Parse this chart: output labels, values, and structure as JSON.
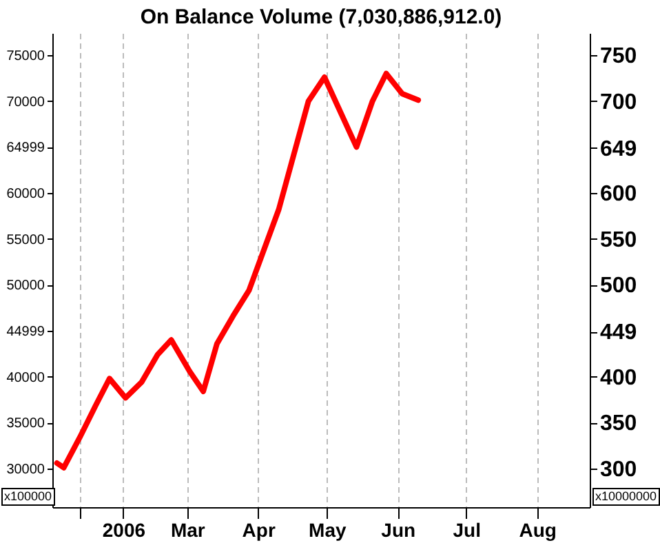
{
  "chart_data": {
    "type": "line",
    "title": "On Balance Volume (7,030,886,912.0)",
    "x": [
      "2006-01-03",
      "2006-01-06",
      "2006-01-13",
      "2006-01-20",
      "2006-01-26",
      "2006-02-02",
      "2006-02-09",
      "2006-02-16",
      "2006-02-22",
      "2006-03-02",
      "2006-03-08",
      "2006-03-14",
      "2006-03-21",
      "2006-03-28",
      "2006-04-10",
      "2006-04-23",
      "2006-04-30",
      "2006-05-14",
      "2006-05-21",
      "2006-05-27",
      "2006-06-03",
      "2006-06-10"
    ],
    "series": [
      {
        "color": "#ff0000",
        "values": [
          30600,
          30100,
          33400,
          36900,
          39800,
          37700,
          39400,
          42400,
          44000,
          40600,
          38400,
          43600,
          46600,
          49400,
          58200,
          70000,
          72600,
          65000,
          70000,
          73000,
          70800,
          70100
        ]
      }
    ],
    "xlim": [
      "2006-01-01",
      "2006-08-24"
    ],
    "xticks": [
      {
        "value": "2006-01-13",
        "label": null
      },
      {
        "value": "2006-02-01",
        "label": "2006"
      },
      {
        "value": "2006-03-01",
        "label": "Mar"
      },
      {
        "value": "2006-04-01",
        "label": "Apr"
      },
      {
        "value": "2006-05-01",
        "label": "May"
      },
      {
        "value": "2006-06-01",
        "label": "Jun"
      },
      {
        "value": "2006-07-01",
        "label": "Jul"
      },
      {
        "value": "2006-08-01",
        "label": "Aug"
      }
    ],
    "ylim": [
      25800,
      77400
    ],
    "yticks": [
      30000,
      35000,
      40000,
      44999,
      50000,
      55000,
      60000,
      64999,
      70000,
      75000
    ],
    "y2lim": [
      258,
      774
    ],
    "y2ticks": [
      300,
      350,
      400,
      449,
      500,
      550,
      600,
      649,
      700,
      750
    ],
    "grid": "x",
    "annotations": [
      "x100000",
      "x10000000"
    ]
  }
}
